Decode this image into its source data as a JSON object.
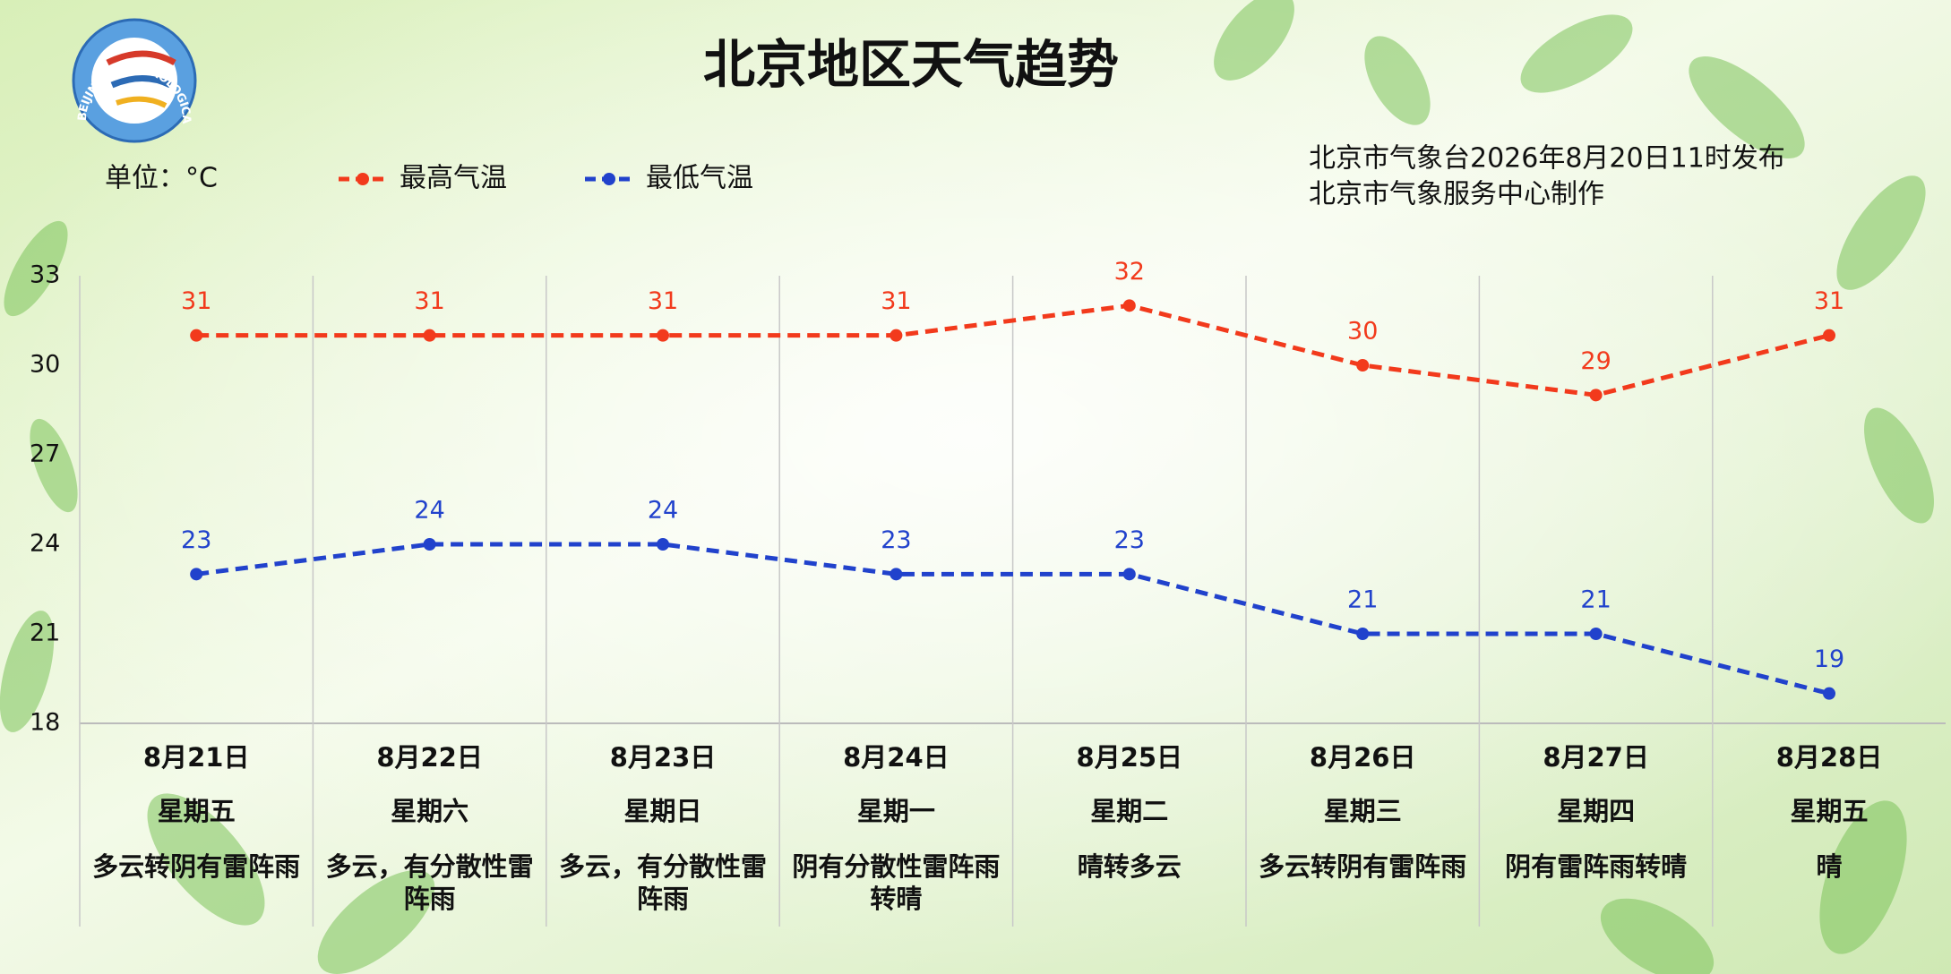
{
  "logo_text": "BEIJING METEOROLOGICAL SERVICE",
  "chart_data": {
    "type": "line",
    "title": "北京地区天气趋势",
    "unit_label": "单位：°C",
    "notes": [
      "北京市气象台2026年8月20日11时发布",
      "北京市气象服务中心制作"
    ],
    "categories": [
      "8月21日",
      "8月22日",
      "8月23日",
      "8月24日",
      "8月25日",
      "8月26日",
      "8月27日",
      "8月28日"
    ],
    "weekdays": [
      "星期五",
      "星期六",
      "星期日",
      "星期一",
      "星期二",
      "星期三",
      "星期四",
      "星期五"
    ],
    "weather": [
      "多云转阴有雷阵雨",
      "多云，有分散性雷阵雨",
      "多云，有分散性雷阵雨",
      "阴有分散性雷阵雨转晴",
      "晴转多云",
      "多云转阴有雷阵雨",
      "阴有雷阵雨转晴",
      "晴"
    ],
    "series": [
      {
        "name": "最高气温",
        "color": "#f23a1c",
        "values": [
          31,
          31,
          31,
          31,
          32,
          30,
          29,
          31
        ]
      },
      {
        "name": "最低气温",
        "color": "#2142cc",
        "values": [
          23,
          24,
          24,
          23,
          23,
          21,
          21,
          19
        ]
      }
    ],
    "ylim": [
      18,
      33
    ],
    "yticks": [
      18,
      21,
      24,
      27,
      30,
      33
    ],
    "grid": false
  }
}
